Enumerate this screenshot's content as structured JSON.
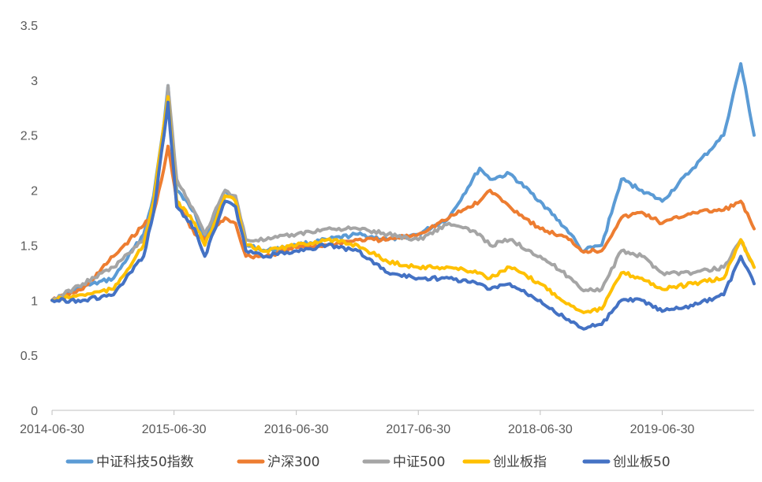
{
  "chart_data": {
    "type": "line",
    "title": "",
    "xlabel": "",
    "ylabel": "",
    "ylim": [
      0,
      3.5
    ],
    "yticks": [
      "0",
      "0.5",
      "1",
      "1.5",
      "2",
      "2.5",
      "3",
      "3.5"
    ],
    "xticks": [
      "2014-06-30",
      "2015-06-30",
      "2016-06-30",
      "2017-06-30",
      "2018-06-30",
      "2019-06-30"
    ],
    "legend_position": "bottom",
    "grid": false,
    "x": [
      "2014-06-30",
      "2014-09-30",
      "2014-12-31",
      "2015-03-31",
      "2015-04-30",
      "2015-05-31",
      "2015-06-12",
      "2015-07-08",
      "2015-08-31",
      "2015-09-30",
      "2015-11-30",
      "2015-12-31",
      "2016-01-31",
      "2016-03-31",
      "2016-06-30",
      "2016-09-30",
      "2016-12-31",
      "2017-03-31",
      "2017-06-30",
      "2017-09-30",
      "2017-12-31",
      "2018-01-31",
      "2018-03-31",
      "2018-06-30",
      "2018-09-30",
      "2018-10-31",
      "2018-12-31",
      "2019-02-28",
      "2019-04-30",
      "2019-06-30",
      "2019-09-30",
      "2019-12-31",
      "2020-02-20",
      "2020-03-31"
    ],
    "series": [
      {
        "name": "中证科技50指数",
        "color": "#5B9BD5",
        "values": [
          1.0,
          1.12,
          1.2,
          1.6,
          1.95,
          2.6,
          2.95,
          2.0,
          1.8,
          1.55,
          2.0,
          1.9,
          1.5,
          1.45,
          1.5,
          1.55,
          1.6,
          1.55,
          1.6,
          1.75,
          2.2,
          2.1,
          2.15,
          1.9,
          1.6,
          1.45,
          1.5,
          2.1,
          2.0,
          1.9,
          2.2,
          2.5,
          3.15,
          2.5
        ]
      },
      {
        "name": "沪深300",
        "color": "#ED7D31",
        "values": [
          1.0,
          1.1,
          1.4,
          1.68,
          1.8,
          2.2,
          2.4,
          1.9,
          1.6,
          1.55,
          1.75,
          1.7,
          1.4,
          1.4,
          1.48,
          1.5,
          1.55,
          1.55,
          1.6,
          1.75,
          1.9,
          2.0,
          1.85,
          1.65,
          1.55,
          1.45,
          1.45,
          1.75,
          1.8,
          1.7,
          1.8,
          1.82,
          1.9,
          1.65
        ]
      },
      {
        "name": "中证500",
        "color": "#A5A5A5",
        "values": [
          1.0,
          1.15,
          1.3,
          1.55,
          1.9,
          2.5,
          2.95,
          2.1,
          1.8,
          1.6,
          2.0,
          1.95,
          1.55,
          1.55,
          1.6,
          1.65,
          1.65,
          1.6,
          1.55,
          1.7,
          1.6,
          1.5,
          1.55,
          1.4,
          1.2,
          1.1,
          1.1,
          1.45,
          1.4,
          1.25,
          1.25,
          1.3,
          1.55,
          1.3
        ]
      },
      {
        "name": "创业板指",
        "color": "#FFC000",
        "values": [
          1.0,
          1.05,
          1.1,
          1.5,
          1.9,
          2.6,
          2.85,
          1.9,
          1.7,
          1.5,
          1.95,
          1.9,
          1.5,
          1.45,
          1.5,
          1.55,
          1.5,
          1.35,
          1.3,
          1.3,
          1.25,
          1.2,
          1.3,
          1.15,
          0.95,
          0.9,
          0.92,
          1.25,
          1.2,
          1.1,
          1.15,
          1.2,
          1.55,
          1.3
        ]
      },
      {
        "name": "创业板50",
        "color": "#4472C4",
        "values": [
          1.0,
          1.0,
          1.05,
          1.4,
          1.8,
          2.5,
          2.8,
          1.85,
          1.65,
          1.4,
          1.9,
          1.85,
          1.45,
          1.4,
          1.45,
          1.5,
          1.45,
          1.25,
          1.2,
          1.2,
          1.15,
          1.1,
          1.15,
          1.0,
          0.8,
          0.75,
          0.78,
          1.0,
          1.0,
          0.9,
          0.95,
          1.05,
          1.4,
          1.15
        ]
      }
    ]
  }
}
